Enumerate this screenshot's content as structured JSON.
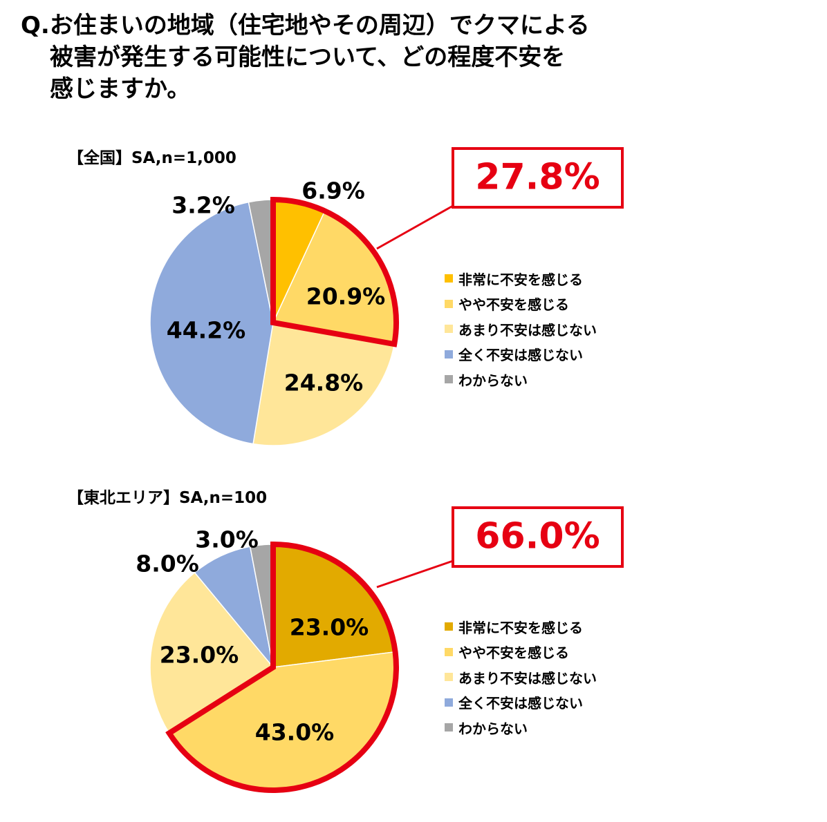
{
  "question": {
    "line1": "Q.お住まいの地域（住宅地やその周辺）でクマによる",
    "line2": "被害が発生する可能性について、どの程度不安を",
    "line3": "感じますか。"
  },
  "legend_labels": [
    "非常に不安を感じる",
    "やや不安を感じる",
    "あまり不安は感じない",
    "全く不安は感じない",
    "わからない"
  ],
  "colors": {
    "very_anxious": "#ffc000",
    "somewhat_anxious": "#ffd966",
    "not_very_anxious": "#ffe699",
    "not_at_all": "#8faadc",
    "unknown": "#a6a6a6",
    "highlight": "#e60012"
  },
  "chart_data": [
    {
      "type": "pie",
      "title": "【全国】SA,n=1,000",
      "categories": [
        "非常に不安を感じる",
        "やや不安を感じる",
        "あまり不安は感じない",
        "全く不安は感じない",
        "わからない"
      ],
      "values": [
        6.9,
        20.9,
        24.8,
        44.2,
        3.2
      ],
      "labels": [
        "6.9%",
        "20.9%",
        "24.8%",
        "44.2%",
        "3.2%"
      ],
      "slice_colors": [
        "#ffc000",
        "#ffd966",
        "#ffe699",
        "#8faadc",
        "#a6a6a6"
      ],
      "highlight_value": "27.8%",
      "legend_placement": "right"
    },
    {
      "type": "pie",
      "title": "【東北エリア】SA,n=100",
      "categories": [
        "非常に不安を感じる",
        "やや不安を感じる",
        "あまり不安は感じない",
        "全く不安は感じない",
        "わからない"
      ],
      "values": [
        23.0,
        43.0,
        23.0,
        8.0,
        3.0
      ],
      "labels": [
        "23.0%",
        "43.0%",
        "23.0%",
        "8.0%",
        "3.0%"
      ],
      "slice_colors": [
        "#e2aa00",
        "#ffd966",
        "#ffe699",
        "#8faadc",
        "#a6a6a6"
      ],
      "highlight_value": "66.0%",
      "legend_placement": "right"
    }
  ]
}
